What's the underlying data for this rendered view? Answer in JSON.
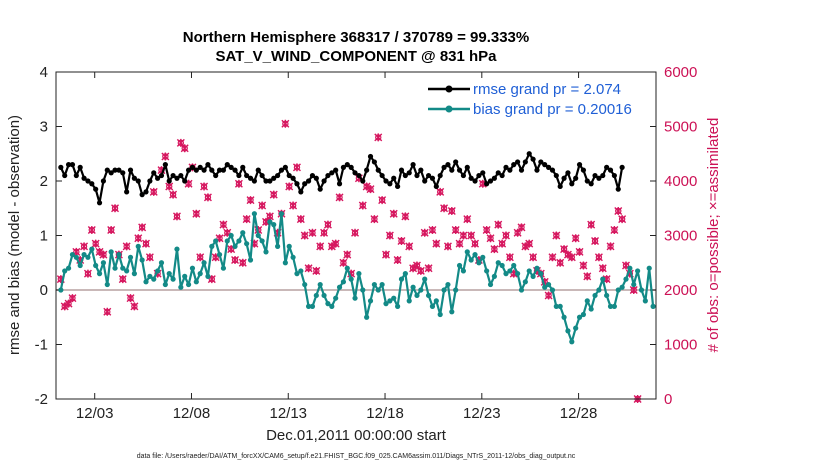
{
  "colors": {
    "rmse": "#000000",
    "bias": "#138a87",
    "obs": "#d6175f",
    "zero_line": "#c9b8b8",
    "legend_text": "#1f5fd6"
  },
  "chart_data": {
    "type": "line",
    "title": "Northern Hemisphere 368317 / 370789 = 99.333%",
    "subtitle": "SAT_V_WIND_COMPONENT @ 831 hPa",
    "xlabel": "Dec.01,2011 00:00:00 start",
    "ylabel": "rmse and bias (model - observation)",
    "ylabel_right": "# of obs: o=possible; ×=assimilated",
    "xlim": [
      1.0,
      32.0
    ],
    "ylim": [
      -2,
      4
    ],
    "ylim_right": [
      0,
      6000
    ],
    "x_ticks": [
      3,
      8,
      13,
      18,
      23,
      28
    ],
    "x_tick_labels": [
      "12/03",
      "12/08",
      "12/13",
      "12/18",
      "12/23",
      "12/28"
    ],
    "y_ticks": [
      -2,
      -1,
      0,
      1,
      2,
      3,
      4
    ],
    "y_ticks_right": [
      0,
      1000,
      2000,
      3000,
      4000,
      5000,
      6000
    ],
    "legend": [
      {
        "label": "rmse grand pr = 2.074",
        "series": "rmse"
      },
      {
        "label": "bias grand pr = 0.20016",
        "series": "bias"
      }
    ],
    "legend_position": "top-right",
    "rmse": [
      2.25,
      2.1,
      2.3,
      2.3,
      2.1,
      2.25,
      2.05,
      2.0,
      1.95,
      1.85,
      1.6,
      2.0,
      2.2,
      2.15,
      2.2,
      2.2,
      2.15,
      1.8,
      2.2,
      2.05,
      2.0,
      1.75,
      1.8,
      2.0,
      2.15,
      2.05,
      2.1,
      2.3,
      2.0,
      2.1,
      2.05,
      2.1,
      2.0,
      2.2,
      2.25,
      2.2,
      2.25,
      2.2,
      2.3,
      2.2,
      2.1,
      2.2,
      2.2,
      2.3,
      2.25,
      2.2,
      2.1,
      2.25,
      2.1,
      2.05,
      2.0,
      2.2,
      2.1,
      2.0,
      2.0,
      2.05,
      2.1,
      2.2,
      2.25,
      2.1,
      2.05,
      1.95,
      1.8,
      1.95,
      2.0,
      2.1,
      2.05,
      1.85,
      2.0,
      2.1,
      2.15,
      2.2,
      1.95,
      2.25,
      2.3,
      2.25,
      2.15,
      2.1,
      2.0,
      2.2,
      2.45,
      2.35,
      2.2,
      2.1,
      2.0,
      1.95,
      2.05,
      1.9,
      2.2,
      2.1,
      2.15,
      2.3,
      2.1,
      2.2,
      2.0,
      2.1,
      2.05,
      1.9,
      2.1,
      2.25,
      2.3,
      2.2,
      2.35,
      2.2,
      2.1,
      2.25,
      2.05,
      2.0,
      2.1,
      2.15,
      1.95,
      2.0,
      2.05,
      2.15,
      2.1,
      2.25,
      2.2,
      2.3,
      2.35,
      2.2,
      2.35,
      2.5,
      2.4,
      2.2,
      2.35,
      2.3,
      2.25,
      2.2,
      2.1,
      1.9,
      2.05,
      2.15,
      1.95,
      2.05,
      2.3,
      2.2,
      2.0,
      1.95,
      2.1,
      2.05,
      2.1,
      2.25,
      2.2,
      2.1,
      1.85,
      2.25
    ],
    "bias": [
      0.0,
      0.35,
      0.4,
      0.65,
      0.6,
      0.45,
      0.65,
      0.6,
      0.75,
      0.45,
      0.3,
      0.5,
      0.1,
      0.7,
      0.4,
      0.65,
      0.4,
      0.35,
      0.6,
      0.3,
      0.8,
      0.55,
      0.15,
      0.25,
      0.2,
      0.35,
      0.5,
      0.1,
      0.3,
      0.2,
      0.75,
      0.05,
      0.25,
      0.1,
      0.4,
      0.15,
      0.3,
      0.5,
      0.25,
      0.8,
      0.9,
      0.65,
      0.4,
      0.9,
      1.0,
      0.8,
      0.9,
      1.05,
      0.85,
      0.55,
      1.4,
      1.0,
      0.9,
      0.7,
      1.25,
      1.2,
      0.8,
      1.4,
      0.5,
      0.8,
      0.6,
      0.3,
      0.35,
      0.1,
      -0.3,
      -0.3,
      -0.1,
      0.1,
      -0.1,
      -0.25,
      -0.3,
      -0.15,
      0.05,
      0.15,
      0.4,
      0.2,
      -0.15,
      0.3,
      0.0,
      -0.5,
      -0.2,
      0.1,
      0.0,
      0.1,
      -0.25,
      -0.2,
      -0.15,
      -0.3,
      0.2,
      0.3,
      -0.2,
      0.05,
      -0.1,
      0.0,
      0.2,
      -0.1,
      -0.3,
      -0.2,
      -0.45,
      0.0,
      0.1,
      -0.4,
      0.0,
      0.45,
      0.35,
      0.7,
      0.55,
      0.65,
      0.5,
      0.6,
      0.35,
      0.1,
      0.25,
      0.5,
      0.45,
      0.3,
      0.35,
      0.45,
      0.3,
      0.0,
      0.15,
      0.35,
      0.25,
      0.4,
      0.3,
      0.05,
      0.1,
      0.0,
      -0.3,
      -0.3,
      -0.5,
      -0.75,
      -0.95,
      -0.7,
      -0.5,
      -0.45,
      -0.2,
      -0.35,
      -0.1,
      0.0,
      0.2,
      -0.1,
      -0.3,
      -0.3,
      0.0,
      0.05,
      0.2,
      0.4,
      0.1,
      0.35,
      0.0,
      -0.2,
      0.4,
      -0.3
    ],
    "obs_counts": [
      2200,
      1700,
      1750,
      1850,
      2700,
      2550,
      2800,
      2300,
      3100,
      2850,
      2700,
      2650,
      1600,
      3100,
      3500,
      2650,
      2200,
      2800,
      1850,
      1700,
      2950,
      3150,
      2850,
      2600,
      3800,
      2300,
      4200,
      4450,
      3900,
      3750,
      3350,
      4700,
      4600,
      3950,
      4250,
      3400,
      2600,
      3900,
      3700,
      2200,
      2600,
      2950,
      3200,
      3050,
      2750,
      2550,
      3950,
      2500,
      3300,
      3650,
      2850,
      3100,
      3550,
      3250,
      3350,
      3750,
      3050,
      3400,
      5050,
      3900,
      3550,
      4250,
      3300,
      3000,
      2400,
      3050,
      2350,
      2800,
      3050,
      3200,
      2800,
      2850,
      3700,
      2500,
      2650,
      2300,
      3050,
      4050,
      3550,
      3900,
      3850,
      3300,
      4800,
      3650,
      2650,
      3000,
      3400,
      2550,
      2900,
      3350,
      2800,
      2400,
      2450,
      2350,
      3050,
      2400,
      3100,
      2850,
      3800,
      3500,
      2800,
      3450,
      3100,
      2850,
      3000,
      3300,
      3000,
      2850,
      2550,
      3950,
      3100,
      2950,
      2750,
      3200,
      2850,
      3000,
      2600,
      2300,
      3050,
      3150,
      2800,
      2850,
      2600,
      2350,
      2300,
      2150,
      1900,
      2600,
      3000,
      2500,
      2750,
      2650,
      2600,
      2950,
      2700,
      2450,
      2250,
      3200,
      2900,
      2600,
      2400,
      2200,
      2800,
      3100,
      3450,
      3300,
      2450,
      2300,
      2000,
      0
    ]
  },
  "footer": "data file: /Users/raeder/DAI/ATM_forcXX/CAM6_setup/f.e21.FHIST_BGC.f09_025.CAM6assim.011/Diags_NTrS_2011-12/obs_diag_output.nc"
}
